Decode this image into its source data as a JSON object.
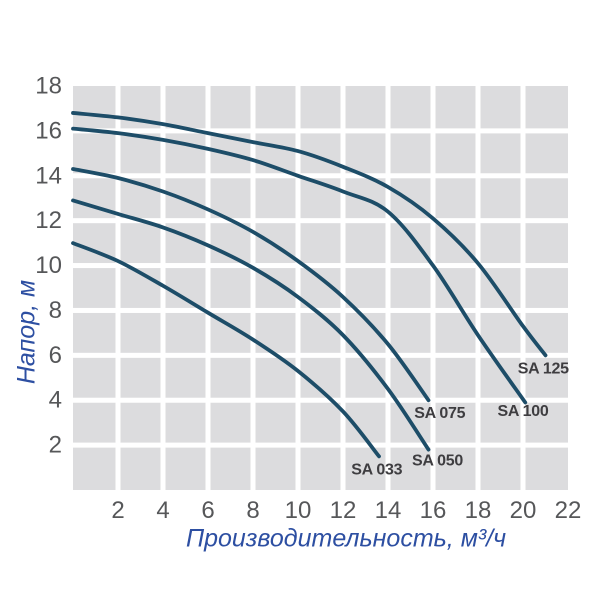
{
  "chart_data": {
    "type": "line",
    "title": "",
    "xlabel": "Производительность, м³/ч",
    "ylabel": "Напор, м",
    "xlim": [
      0,
      22
    ],
    "ylim": [
      0,
      18
    ],
    "x_ticks": [
      2,
      4,
      6,
      8,
      10,
      12,
      14,
      16,
      18,
      20,
      22
    ],
    "y_ticks": [
      2,
      4,
      6,
      8,
      10,
      12,
      14,
      16,
      18
    ],
    "grid": "2x2-unit light gray cells separated by white gridlines, no outer frame",
    "legend_position": "labels at curve ends inside plot",
    "series": [
      {
        "name": "SA 033",
        "x": [
          0,
          2,
          4,
          6,
          8,
          10,
          12,
          13.6
        ],
        "y": [
          11.0,
          10.2,
          9.1,
          7.9,
          6.7,
          5.3,
          3.5,
          1.5
        ],
        "label_pos": [
          13.5,
          0.9
        ]
      },
      {
        "name": "SA 050",
        "x": [
          0,
          2,
          4,
          6,
          8,
          10,
          12,
          14,
          15.8
        ],
        "y": [
          12.9,
          12.3,
          11.7,
          10.9,
          9.9,
          8.6,
          6.9,
          4.5,
          1.8
        ],
        "label_pos": [
          16.2,
          1.3
        ]
      },
      {
        "name": "SA 075",
        "x": [
          0,
          2,
          4,
          6,
          8,
          10,
          12,
          14,
          15.8
        ],
        "y": [
          14.3,
          13.9,
          13.3,
          12.5,
          11.5,
          10.2,
          8.6,
          6.5,
          4.0
        ],
        "label_pos": [
          16.3,
          3.4
        ]
      },
      {
        "name": "SA 100",
        "x": [
          0,
          2,
          4,
          6,
          8,
          10,
          12,
          14,
          16,
          18,
          20.1
        ],
        "y": [
          16.1,
          15.9,
          15.6,
          15.2,
          14.7,
          14.0,
          13.3,
          12.4,
          10.0,
          6.9,
          3.9
        ],
        "label_pos": [
          20.0,
          3.5
        ]
      },
      {
        "name": "SA 125",
        "x": [
          0,
          2,
          4,
          6,
          8,
          10,
          12,
          14,
          16,
          18,
          20,
          21
        ],
        "y": [
          16.8,
          16.6,
          16.3,
          15.9,
          15.5,
          15.1,
          14.4,
          13.5,
          12.1,
          10.1,
          7.3,
          6.0
        ],
        "label_pos": [
          20.9,
          5.4
        ]
      }
    ],
    "colors": {
      "background": "#ffffff",
      "curve": "#1d4d68",
      "grid_cell": "#dcdcde",
      "gridline": "#ffffff",
      "tick_label": "#565759",
      "axis_title": "#2d4fa2",
      "curve_label": "#3e3d40"
    }
  }
}
